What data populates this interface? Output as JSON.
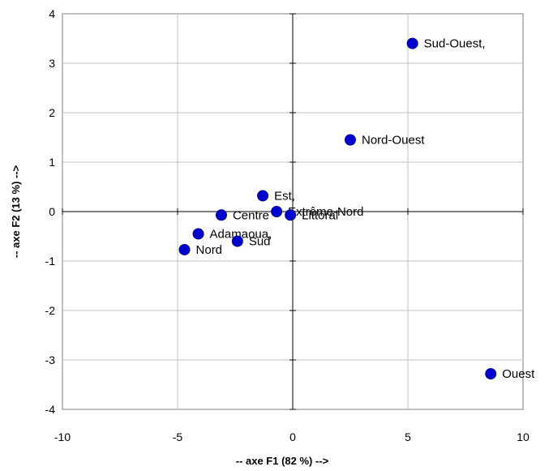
{
  "chart_data": {
    "type": "scatter",
    "xlabel": "-- axe F1 (82 %) -->",
    "ylabel": "-- axe F2 (13 %) -->",
    "xlim": [
      -10,
      10
    ],
    "ylim": [
      -4,
      4
    ],
    "xticks": [
      -10,
      -5,
      0,
      5,
      10
    ],
    "yticks": [
      -4,
      -3,
      -2,
      -1,
      0,
      1,
      2,
      3,
      4
    ],
    "grid": true,
    "marker_color": "#0000cc",
    "points": [
      {
        "label": "Sud-Ouest,",
        "x": 5.2,
        "y": 3.4
      },
      {
        "label": "Nord-Ouest",
        "x": 2.5,
        "y": 1.45
      },
      {
        "label": "Est,",
        "x": -1.3,
        "y": 0.32
      },
      {
        "label": "Extrême-Nord",
        "x": -0.7,
        "y": 0.0
      },
      {
        "label": "Littoral",
        "x": -0.1,
        "y": -0.07
      },
      {
        "label": "Centre",
        "x": -3.1,
        "y": -0.07
      },
      {
        "label": "Adamaoua,",
        "x": -4.1,
        "y": -0.45
      },
      {
        "label": "Sud",
        "x": -2.4,
        "y": -0.6
      },
      {
        "label": "Nord",
        "x": -4.7,
        "y": -0.77
      },
      {
        "label": "Ouest",
        "x": 8.6,
        "y": -3.28
      }
    ]
  }
}
